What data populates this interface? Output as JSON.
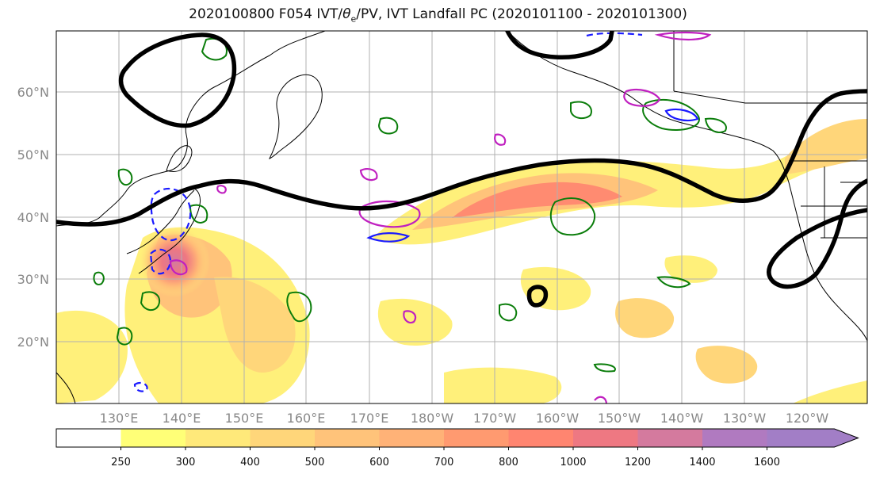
{
  "title": {
    "prefix": "2020100800 F054 IVT/",
    "theta": "θ",
    "theta_sub": "e",
    "suffix": "/PV, IVT Landfall PC (2020101100 - 2020101300)"
  },
  "map": {
    "lat_labels": [
      "20°N",
      "30°N",
      "40°N",
      "50°N",
      "60°N"
    ],
    "lon_labels": [
      "130°E",
      "140°E",
      "150°E",
      "160°E",
      "170°E",
      "180°W",
      "170°W",
      "160°W",
      "150°W",
      "140°W",
      "130°W",
      "120°W"
    ],
    "line_colors": {
      "contour_black": "#000000",
      "pv_green": "#0a7d0a",
      "theta_blue": "#1a1aff",
      "magenta": "#c020c0",
      "coast": "#000000",
      "grid": "#b0b0b0"
    }
  },
  "colorbar": {
    "ticks": [
      "250",
      "300",
      "400",
      "500",
      "600",
      "700",
      "800",
      "1000",
      "1200",
      "1400",
      "1600"
    ],
    "colors": [
      "#ffffff",
      "#ffff77",
      "#ffe97a",
      "#ffd67a",
      "#ffc37a",
      "#ffb277",
      "#ff9a70",
      "#ff8570",
      "#ee7882",
      "#d47a9e",
      "#b07ac0",
      "#a27ec6"
    ]
  }
}
